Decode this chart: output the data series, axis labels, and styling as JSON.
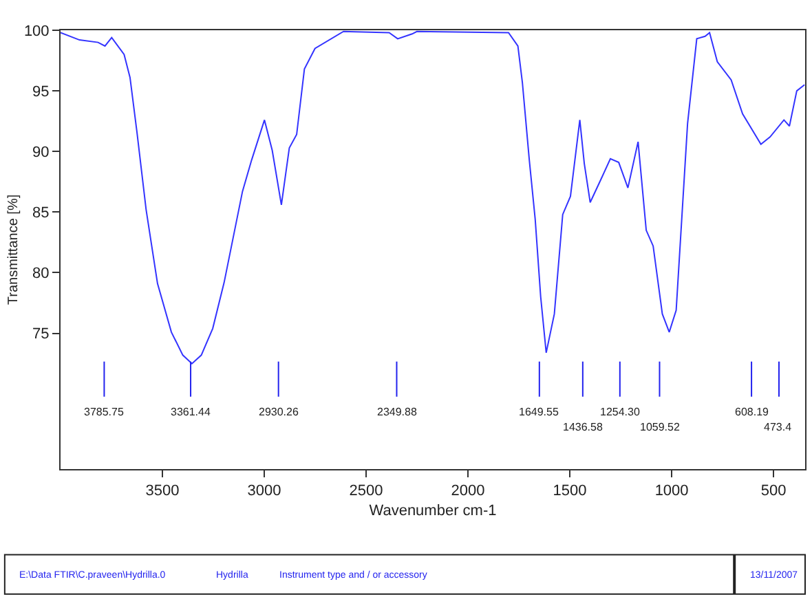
{
  "chart_data": {
    "type": "line",
    "xlabel": "Wavenumber cm-1",
    "ylabel": "Transmittance [%]",
    "x": [
      4000,
      3907,
      3816,
      3782,
      3749,
      3688,
      3659,
      3625,
      3580,
      3524,
      3456,
      3400,
      3355,
      3309,
      3253,
      3197,
      3107,
      3062,
      2999,
      2961,
      2916,
      2877,
      2841,
      2803,
      2751,
      2611,
      2387,
      2345,
      2274,
      2251,
      1801,
      1755,
      1733,
      1699,
      1670,
      1643,
      1616,
      1576,
      1535,
      1497,
      1451,
      1429,
      1400,
      1350,
      1301,
      1260,
      1215,
      1165,
      1125,
      1091,
      1046,
      1012,
      978,
      922,
      877,
      836,
      814,
      776,
      708,
      652,
      562,
      517,
      449,
      422,
      386,
      348
    ],
    "series": [
      {
        "color": "#3333ff",
        "values": [
          99.8,
          99.2,
          99.0,
          98.7,
          99.4,
          98.0,
          96.1,
          91.6,
          85.2,
          79.1,
          75.1,
          73.2,
          72.5,
          73.2,
          75.4,
          79.2,
          86.7,
          89.3,
          92.6,
          90.1,
          85.6,
          90.3,
          91.4,
          96.8,
          98.5,
          99.9,
          99.8,
          99.3,
          99.7,
          99.9,
          99.8,
          98.7,
          95.7,
          89.3,
          84.4,
          78.0,
          73.4,
          76.6,
          84.8,
          86.3,
          92.6,
          89.0,
          85.8,
          87.6,
          89.4,
          89.1,
          87.0,
          90.8,
          83.5,
          82.2,
          76.6,
          75.1,
          76.9,
          92.3,
          99.3,
          99.5,
          99.8,
          97.4,
          95.9,
          93.1,
          90.6,
          91.2,
          92.6,
          92.1,
          95.0,
          95.5
        ]
      }
    ],
    "xlim": [
      4000,
      345
    ],
    "xticks": [
      3500,
      3000,
      2500,
      2000,
      1500,
      1000,
      500
    ],
    "ylim": [
      63.8,
      100
    ],
    "yticks": [
      75,
      80,
      85,
      90,
      95,
      100
    ],
    "marker": "none",
    "line_style": "solid",
    "ref_lines": [
      {
        "axis": "x",
        "value": 3785.75,
        "label": "3785.75",
        "color": "#2222ee"
      },
      {
        "axis": "x",
        "value": 3361.44,
        "label": "3361.44",
        "color": "#2222ee"
      },
      {
        "axis": "x",
        "value": 2930.26,
        "label": "2930.26",
        "color": "#2222ee"
      },
      {
        "axis": "x",
        "value": 2349.88,
        "label": "2349.88",
        "color": "#2222ee"
      },
      {
        "axis": "x",
        "value": 1649.55,
        "label": "1649.55",
        "color": "#2222ee"
      },
      {
        "axis": "x",
        "value": 1436.58,
        "label": "1436.58",
        "color": "#2222ee"
      },
      {
        "axis": "x",
        "value": 1254.3,
        "label": "1254.30",
        "color": "#2222ee"
      },
      {
        "axis": "x",
        "value": 1059.52,
        "label": "1059.52",
        "color": "#2222ee"
      },
      {
        "axis": "x",
        "value": 608.19,
        "label": "608.19",
        "color": "#2222ee"
      },
      {
        "axis": "x",
        "value": 473.4,
        "label": "473.4",
        "color": "#2222ee"
      }
    ],
    "annotations": [
      "E:\\Data FTIR\\C.praveen\\Hydrilla.0",
      "Hydrilla",
      "Instrument type and / or accessory",
      "13/11/2007"
    ]
  }
}
